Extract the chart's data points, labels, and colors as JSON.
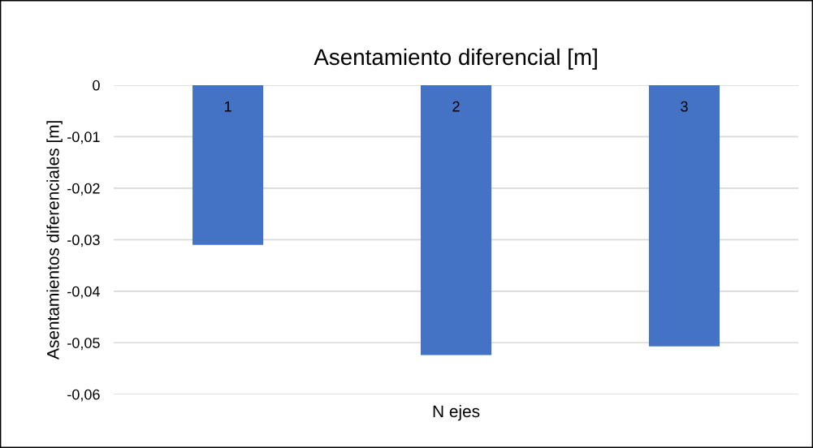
{
  "chart_data": {
    "type": "bar",
    "title": "Asentamiento diferencial [m]",
    "xlabel": "N ejes",
    "ylabel": "Asentamientos diferenciales [m]",
    "categories": [
      "1",
      "2",
      "3"
    ],
    "values": [
      -0.031,
      -0.0524,
      -0.0507
    ],
    "color": "#4472c4",
    "ylim": [
      -0.06,
      0
    ],
    "yticks": [
      0,
      {
        "value": -0.01,
        "label": "-0,01"
      },
      {
        "value": -0.02,
        "label": "-0,02"
      },
      {
        "value": -0.03,
        "label": "-0,03"
      },
      {
        "value": -0.04,
        "label": "-0,04"
      },
      {
        "value": -0.05,
        "label": "-0,05"
      },
      {
        "value": -0.06,
        "label": "-0,06"
      }
    ],
    "grid": "y",
    "legend": false
  }
}
